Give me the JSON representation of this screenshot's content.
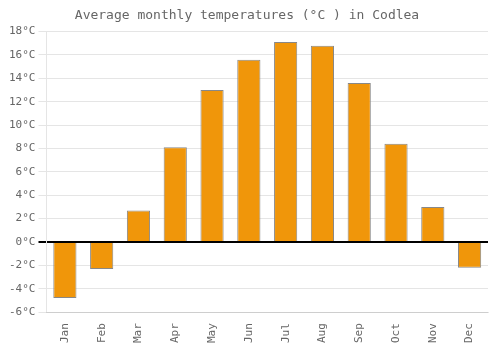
{
  "chart_data": {
    "type": "bar",
    "title": "Average monthly temperatures (°C ) in Codlea",
    "categories": [
      "Jan",
      "Feb",
      "Mar",
      "Apr",
      "May",
      "Jun",
      "Jul",
      "Aug",
      "Sep",
      "Oct",
      "Nov",
      "Dec"
    ],
    "values": [
      -4.8,
      -2.3,
      2.7,
      8.1,
      13.0,
      15.6,
      17.1,
      16.8,
      13.6,
      8.4,
      3.0,
      -2.2
    ],
    "color": "#F0960A",
    "ylim": [
      -6,
      18
    ],
    "yticks": [
      {
        "value": -6,
        "label": "-6°C"
      },
      {
        "value": -4,
        "label": "-4°C"
      },
      {
        "value": -2,
        "label": "-2°C"
      },
      {
        "value": 0,
        "label": "0°C"
      },
      {
        "value": 2,
        "label": "2°C"
      },
      {
        "value": 4,
        "label": "4°C"
      },
      {
        "value": 6,
        "label": "6°C"
      },
      {
        "value": 8,
        "label": "8°C"
      },
      {
        "value": 10,
        "label": "10°C"
      },
      {
        "value": 12,
        "label": "12°C"
      },
      {
        "value": 14,
        "label": "14°C"
      },
      {
        "value": 16,
        "label": "16°C"
      },
      {
        "value": 18,
        "label": "18°C"
      }
    ],
    "grid": true
  }
}
